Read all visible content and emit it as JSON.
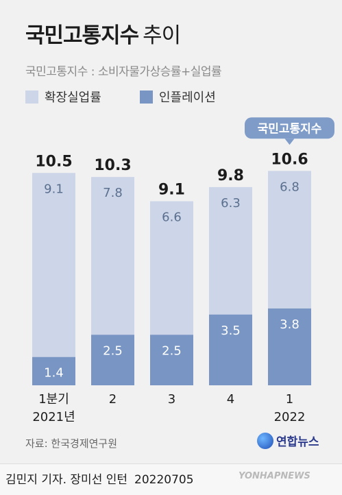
{
  "title": "국민고통지수",
  "title_suffix": "추이",
  "subtitle": "국민고통지수 : 소비자물가상승률+실업률",
  "callout": "국민고통지수",
  "source": "자료: 한국경제연구원",
  "logo_text": "연합뉴스",
  "credit": "김민지 기자. 장미선 인턴",
  "date": "20220705",
  "watermark": "YONHAPNEWS",
  "colors": {
    "unemployment": "#cdd6e8",
    "inflation": "#7895c3",
    "callout": "#7f9cc9"
  },
  "chart_data": {
    "type": "bar",
    "stacked": true,
    "categories": [
      [
        "1분기",
        "2021년"
      ],
      [
        "2",
        ""
      ],
      [
        "3",
        ""
      ],
      [
        "4",
        ""
      ],
      [
        "1",
        "2022"
      ]
    ],
    "series": [
      {
        "name": "인플레이션",
        "values": [
          1.4,
          2.5,
          2.5,
          3.5,
          3.8
        ]
      },
      {
        "name": "확장실업률",
        "values": [
          9.1,
          7.8,
          6.6,
          6.3,
          6.8
        ]
      }
    ],
    "totals": [
      "10.5",
      "10.3",
      "9.1",
      "9.8",
      "10.6"
    ],
    "legend_position": "top-left",
    "highlight_index": 4
  }
}
